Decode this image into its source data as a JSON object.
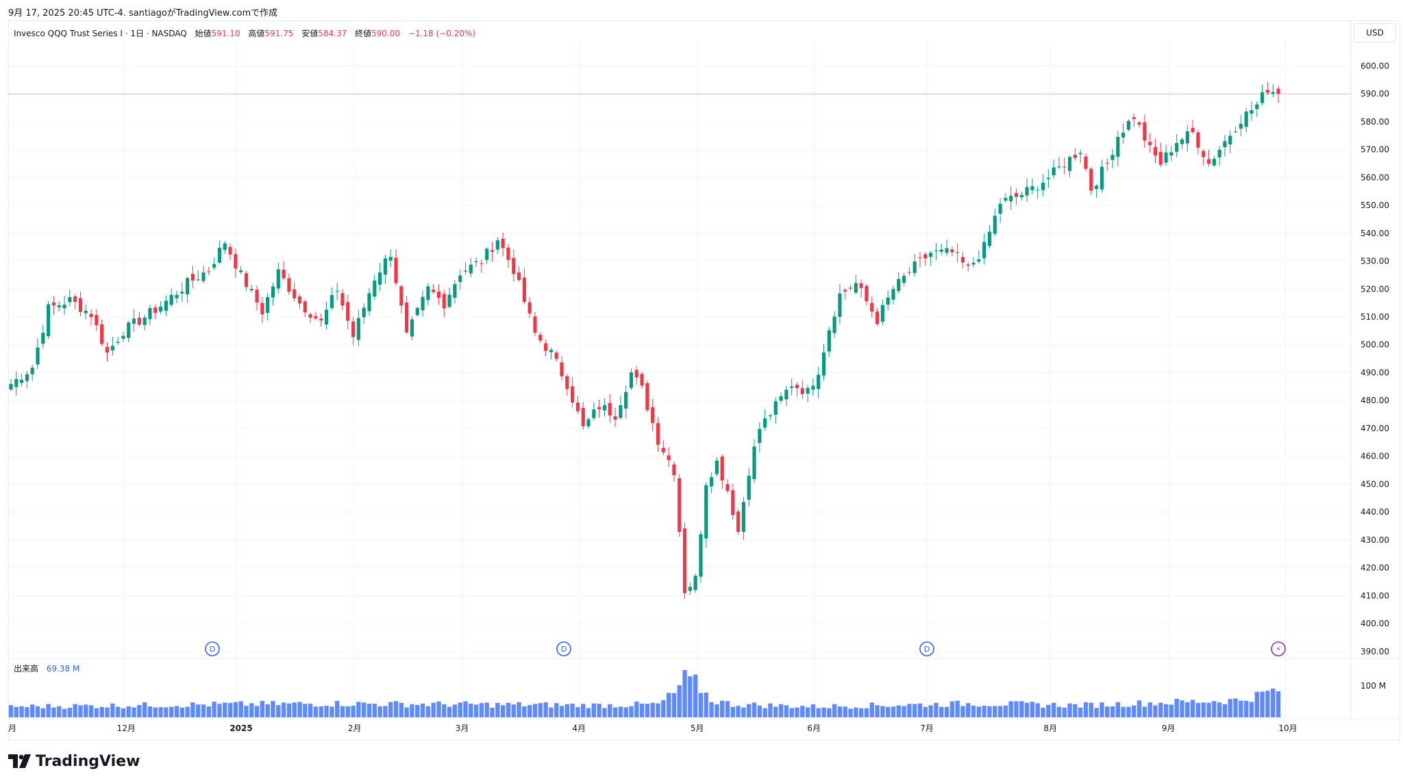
{
  "header": {
    "text": "9月 17, 2025 20:45 UTC-4.  santiagoがTradingView.comで作成"
  },
  "legend": {
    "symbol": "Invesco QQQ Trust Series I · 1日 · NASDAQ",
    "open_label": "始値",
    "open_value": "591.10",
    "high_label": "高値",
    "high_value": "591.75",
    "low_label": "安値",
    "low_value": "584.37",
    "close_label": "終値",
    "close_value": "590.00",
    "change": "−1.18 (−0.20%)"
  },
  "currency": "USD",
  "volume_legend": {
    "label": "出来高",
    "value": "69.38 M"
  },
  "brand": {
    "name": "TradingView"
  },
  "colors": {
    "up": "#089981",
    "down": "#F23645",
    "volume": "#2962FF",
    "grid": "#f0f3fa",
    "price_line": "#F23645",
    "event_blue": "#2962FF",
    "event_purple": "#9C27B0"
  },
  "events": [
    {
      "type": "dividend",
      "label": "D",
      "date": "2024-12-23"
    },
    {
      "type": "dividend",
      "label": "D",
      "date": "2025-03-24"
    },
    {
      "type": "dividend",
      "label": "D",
      "date": "2025-06-23"
    },
    {
      "type": "earnings-flash",
      "label": "⚡",
      "date": "2025-09-17"
    }
  ],
  "chart_data": {
    "type": "candlestick",
    "title": "Invesco QQQ Trust Series I · 1日 · NASDAQ",
    "y_axis": {
      "unit": "USD",
      "ticks": [
        390,
        400,
        410,
        420,
        430,
        440,
        450,
        460,
        470,
        480,
        490,
        500,
        510,
        520,
        530,
        540,
        550,
        560,
        570,
        580,
        590,
        600
      ],
      "range": [
        385,
        605
      ]
    },
    "x_axis": {
      "labels": [
        "月",
        "12月",
        "2025",
        "2月",
        "3月",
        "4月",
        "5月",
        "6月",
        "7月",
        "8月",
        "9月",
        "10月"
      ]
    },
    "volume_axis": {
      "ticks": [
        "100 M"
      ]
    },
    "last_close": 590.0,
    "anchors": [
      [
        0,
        486
      ],
      [
        4,
        492
      ],
      [
        7,
        513
      ],
      [
        11,
        516
      ],
      [
        15,
        511
      ],
      [
        18,
        497
      ],
      [
        21,
        505
      ],
      [
        25,
        510
      ],
      [
        28,
        514
      ],
      [
        33,
        522
      ],
      [
        37,
        527
      ],
      [
        40,
        537
      ],
      [
        43,
        525
      ],
      [
        47,
        512
      ],
      [
        50,
        526
      ],
      [
        54,
        515
      ],
      [
        58,
        508
      ],
      [
        61,
        520
      ],
      [
        64,
        503
      ],
      [
        68,
        524
      ],
      [
        71,
        533
      ],
      [
        74,
        503
      ],
      [
        78,
        520
      ],
      [
        81,
        515
      ],
      [
        84,
        526
      ],
      [
        88,
        530
      ],
      [
        91,
        538
      ],
      [
        94,
        527
      ],
      [
        98,
        504
      ],
      [
        101,
        497
      ],
      [
        104,
        486
      ],
      [
        107,
        470
      ],
      [
        110,
        478
      ],
      [
        113,
        475
      ],
      [
        116,
        490
      ],
      [
        118,
        484
      ],
      [
        121,
        466
      ],
      [
        124,
        455
      ],
      [
        126,
        412
      ],
      [
        128,
        416
      ],
      [
        130,
        451
      ],
      [
        132,
        458
      ],
      [
        134,
        448
      ],
      [
        136,
        433
      ],
      [
        138,
        455
      ],
      [
        140,
        470
      ],
      [
        143,
        478
      ],
      [
        146,
        486
      ],
      [
        149,
        483
      ],
      [
        151,
        491
      ],
      [
        153,
        506
      ],
      [
        155,
        518
      ],
      [
        158,
        522
      ],
      [
        162,
        509
      ],
      [
        165,
        520
      ],
      [
        169,
        528
      ],
      [
        172,
        533
      ],
      [
        176,
        533
      ],
      [
        179,
        527
      ],
      [
        182,
        535
      ],
      [
        185,
        551
      ],
      [
        188,
        553
      ],
      [
        191,
        556
      ],
      [
        194,
        560
      ],
      [
        197,
        565
      ],
      [
        200,
        570
      ],
      [
        202,
        556
      ],
      [
        205,
        565
      ],
      [
        207,
        575
      ],
      [
        210,
        582
      ],
      [
        213,
        570
      ],
      [
        215,
        565
      ],
      [
        218,
        573
      ],
      [
        221,
        576
      ],
      [
        224,
        565
      ],
      [
        227,
        573
      ],
      [
        230,
        581
      ],
      [
        233,
        586
      ],
      [
        235,
        592
      ],
      [
        237,
        590
      ]
    ],
    "volume_profile": [
      [
        0,
        25
      ],
      [
        40,
        30
      ],
      [
        60,
        32
      ],
      [
        110,
        28
      ],
      [
        121,
        30
      ],
      [
        124,
        55
      ],
      [
        126,
        90
      ],
      [
        128,
        80
      ],
      [
        131,
        40
      ],
      [
        135,
        30
      ],
      [
        150,
        25
      ],
      [
        180,
        32
      ],
      [
        200,
        28
      ],
      [
        230,
        40
      ],
      [
        237,
        65
      ]
    ]
  }
}
